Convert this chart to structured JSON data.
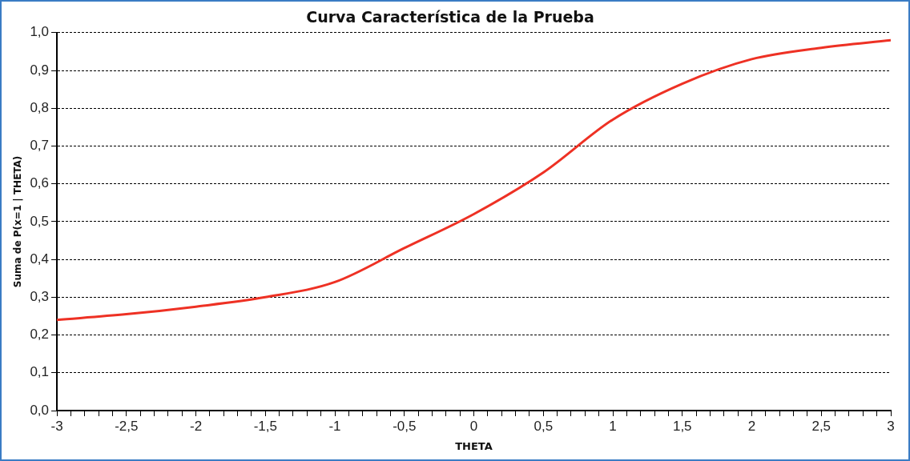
{
  "chart_data": {
    "type": "line",
    "title": "Curva Característica de la Prueba",
    "xlabel": "THETA",
    "ylabel": "Suma de P(x=1 | THETA)",
    "x": [
      -3,
      -2.5,
      -2,
      -1.5,
      -1,
      -0.5,
      0,
      0.5,
      1,
      1.5,
      2,
      2.5,
      3
    ],
    "series": [
      {
        "color": "#ee3124",
        "values": [
          0.24,
          0.255,
          0.275,
          0.3,
          0.34,
          0.43,
          0.52,
          0.63,
          0.77,
          0.865,
          0.93,
          0.96,
          0.98
        ]
      }
    ],
    "xlim": [
      -3,
      3
    ],
    "xticks": [
      {
        "value": -3,
        "label": "-3"
      },
      {
        "value": -2.9,
        "label": null
      },
      {
        "value": -2.8,
        "label": null
      },
      {
        "value": -2.7,
        "label": null
      },
      {
        "value": -2.6,
        "label": null
      },
      {
        "value": -2.5,
        "label": "-2,5"
      },
      {
        "value": -2.4,
        "label": null
      },
      {
        "value": -2.3,
        "label": null
      },
      {
        "value": -2.2,
        "label": null
      },
      {
        "value": -2.1,
        "label": null
      },
      {
        "value": -2,
        "label": "-2"
      },
      {
        "value": -1.9,
        "label": null
      },
      {
        "value": -1.8,
        "label": null
      },
      {
        "value": -1.7,
        "label": null
      },
      {
        "value": -1.6,
        "label": null
      },
      {
        "value": -1.5,
        "label": "-1,5"
      },
      {
        "value": -1.4,
        "label": null
      },
      {
        "value": -1.3,
        "label": null
      },
      {
        "value": -1.2,
        "label": null
      },
      {
        "value": -1.1,
        "label": null
      },
      {
        "value": -1,
        "label": "-1"
      },
      {
        "value": -0.9,
        "label": null
      },
      {
        "value": -0.8,
        "label": null
      },
      {
        "value": -0.7,
        "label": null
      },
      {
        "value": -0.6,
        "label": null
      },
      {
        "value": -0.5,
        "label": "-0,5"
      },
      {
        "value": -0.4,
        "label": null
      },
      {
        "value": -0.3,
        "label": null
      },
      {
        "value": -0.2,
        "label": null
      },
      {
        "value": -0.1,
        "label": null
      },
      {
        "value": 0,
        "label": "0"
      },
      {
        "value": 0.1,
        "label": null
      },
      {
        "value": 0.2,
        "label": null
      },
      {
        "value": 0.3,
        "label": null
      },
      {
        "value": 0.4,
        "label": null
      },
      {
        "value": 0.5,
        "label": "0,5"
      },
      {
        "value": 0.6,
        "label": null
      },
      {
        "value": 0.7,
        "label": null
      },
      {
        "value": 0.8,
        "label": null
      },
      {
        "value": 0.9,
        "label": null
      },
      {
        "value": 1,
        "label": "1"
      },
      {
        "value": 1.1,
        "label": null
      },
      {
        "value": 1.2,
        "label": null
      },
      {
        "value": 1.3,
        "label": null
      },
      {
        "value": 1.4,
        "label": null
      },
      {
        "value": 1.5,
        "label": "1,5"
      },
      {
        "value": 1.6,
        "label": null
      },
      {
        "value": 1.7,
        "label": null
      },
      {
        "value": 1.8,
        "label": null
      },
      {
        "value": 1.9,
        "label": null
      },
      {
        "value": 2,
        "label": "2"
      },
      {
        "value": 2.1,
        "label": null
      },
      {
        "value": 2.2,
        "label": null
      },
      {
        "value": 2.3,
        "label": null
      },
      {
        "value": 2.4,
        "label": null
      },
      {
        "value": 2.5,
        "label": "2,5"
      },
      {
        "value": 2.6,
        "label": null
      },
      {
        "value": 2.7,
        "label": null
      },
      {
        "value": 2.8,
        "label": null
      },
      {
        "value": 2.9,
        "label": null
      },
      {
        "value": 3,
        "label": "3"
      }
    ],
    "ylim": [
      0,
      1
    ],
    "yticks": [
      {
        "value": 0,
        "label": "0,0"
      },
      {
        "value": 0.1,
        "label": "0,1"
      },
      {
        "value": 0.2,
        "label": "0,2"
      },
      {
        "value": 0.3,
        "label": "0,3"
      },
      {
        "value": 0.4,
        "label": "0,4"
      },
      {
        "value": 0.5,
        "label": "0,5"
      },
      {
        "value": 0.6,
        "label": "0,6"
      },
      {
        "value": 0.7,
        "label": "0,7"
      },
      {
        "value": 0.8,
        "label": "0,8"
      },
      {
        "value": 0.9,
        "label": "0,9"
      },
      {
        "value": 1,
        "label": "1,0"
      }
    ],
    "grid": "y",
    "legend": false,
    "marker": "none",
    "line_style": "solid"
  }
}
